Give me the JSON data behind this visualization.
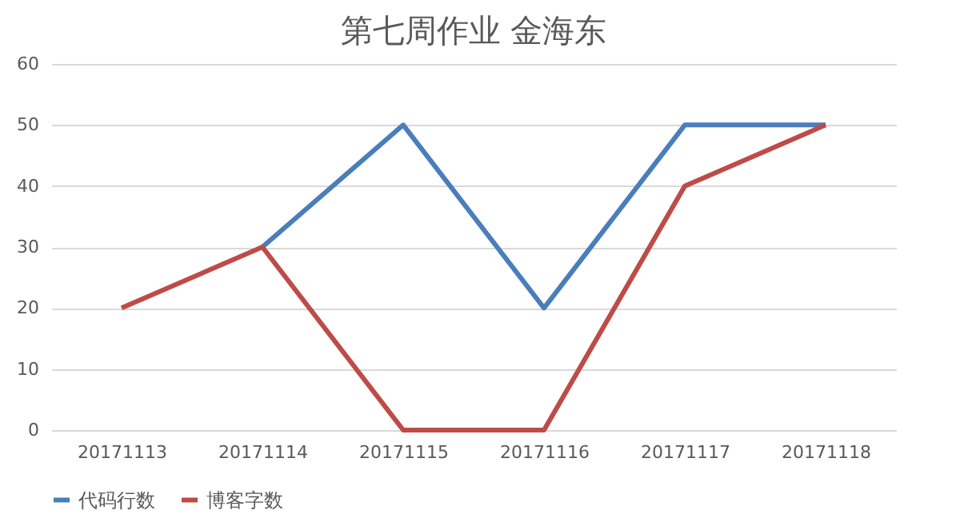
{
  "chart_data": {
    "type": "line",
    "title": "第七周作业 金海东",
    "categories": [
      "20171113",
      "20171114",
      "20171115",
      "20171116",
      "20171117",
      "20171118"
    ],
    "series": [
      {
        "name": "代码行数",
        "color": "#4a7ebb",
        "values": [
          null,
          30,
          50,
          20,
          50,
          50
        ]
      },
      {
        "name": "博客字数",
        "color": "#be4b48",
        "values": [
          20,
          30,
          0,
          0,
          40,
          50
        ]
      }
    ],
    "ylim": [
      0,
      60
    ],
    "yticks": [
      0,
      10,
      20,
      30,
      40,
      50,
      60
    ],
    "grid": "y",
    "legend": "bottom",
    "marker": "none",
    "line_style": "solid"
  }
}
